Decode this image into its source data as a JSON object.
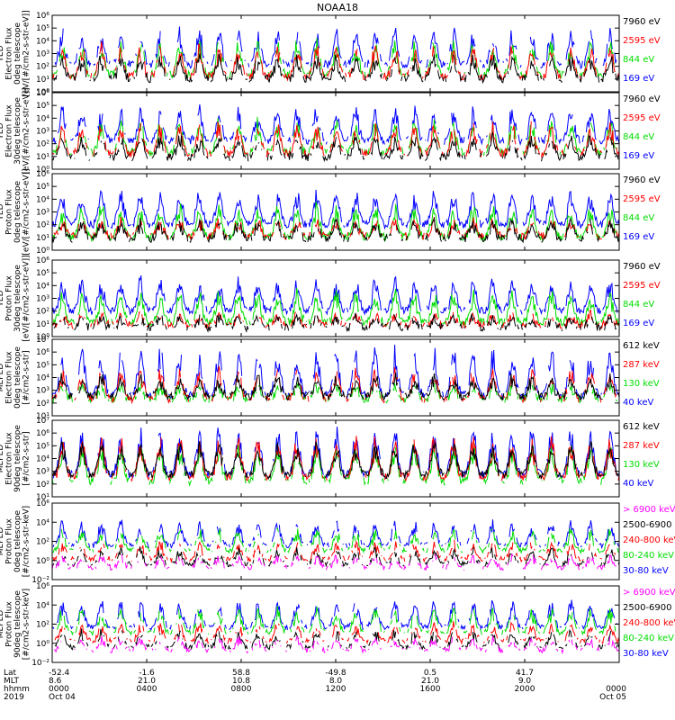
{
  "chart_data": {
    "type": "line",
    "title": "NOAA18",
    "x_range": [
      "2019-10-04 00:00",
      "2019-10-05 00:00"
    ],
    "x_ticks": [
      {
        "lat": "-52.4",
        "mlt": "8.6",
        "hhmm": "0000",
        "date": "Oct 04"
      },
      {
        "lat": "-1.6",
        "mlt": "21.0",
        "hhmm": "0400",
        "date": ""
      },
      {
        "lat": "58.8",
        "mlt": "10.8",
        "hhmm": "0800",
        "date": ""
      },
      {
        "lat": "-49.8",
        "mlt": "8.0",
        "hhmm": "1200",
        "date": ""
      },
      {
        "lat": "0.5",
        "mlt": "21.0",
        "hhmm": "1600",
        "date": ""
      },
      {
        "lat": "41.7",
        "mlt": "9.0",
        "hhmm": "2000",
        "date": ""
      },
      {
        "lat": "",
        "mlt": "",
        "hhmm": "0000",
        "date": "Oct 05"
      }
    ],
    "row_labels": [
      "Lat",
      "MLT",
      "hhmm",
      "2019"
    ],
    "panels": [
      {
        "ylabel": [
          "TED",
          "Electron Flux",
          "0deg telescope",
          "[eV/[#/cm2-s-str-eV]]"
        ],
        "y_ticks": [
          "10⁰",
          "10¹",
          "10²",
          "10³",
          "10⁴",
          "10⁵",
          "10⁶"
        ],
        "log_range": [
          0,
          6
        ],
        "series": [
          {
            "name": "7960 eV",
            "color": "#000000",
            "base": 1.0,
            "amp": 1.6,
            "act": 0.55
          },
          {
            "name": "2595 eV",
            "color": "#ff0000",
            "base": 1.2,
            "amp": 2.2,
            "act": 0.5
          },
          {
            "name": "844 eV",
            "color": "#00dd00",
            "base": 1.3,
            "amp": 2.4,
            "act": 0.45
          },
          {
            "name": "169 eV",
            "color": "#0000ff",
            "base": 2.1,
            "amp": 2.5,
            "act": 0.5
          }
        ]
      },
      {
        "ylabel": [
          "TED",
          "Electron Flux",
          "30deg telescope",
          "[eV/[#/cm2-s-str-eV]]"
        ],
        "y_ticks": [
          "10⁰",
          "10¹",
          "10²",
          "10³",
          "10⁴",
          "10⁵",
          "10⁶"
        ],
        "log_range": [
          0,
          6
        ],
        "series": [
          {
            "name": "7960 eV",
            "color": "#000000",
            "base": 0.9,
            "amp": 1.5,
            "act": 0.55
          },
          {
            "name": "2595 eV",
            "color": "#ff0000",
            "base": 1.2,
            "amp": 2.1,
            "act": 0.5
          },
          {
            "name": "844 eV",
            "color": "#00dd00",
            "base": 1.3,
            "amp": 2.3,
            "act": 0.45
          },
          {
            "name": "169 eV",
            "color": "#0000ff",
            "base": 2.2,
            "amp": 2.3,
            "act": 0.55
          }
        ]
      },
      {
        "ylabel": [
          "TED",
          "Proton Flux",
          "0deg telescope",
          "[eV/[#/cm2-s-str-eV]]"
        ],
        "y_ticks": [
          "10⁰",
          "10¹",
          "10²",
          "10³",
          "10⁴",
          "10⁵",
          "10⁶"
        ],
        "log_range": [
          0,
          6
        ],
        "series": [
          {
            "name": "7960 eV",
            "color": "#000000",
            "base": 0.9,
            "amp": 1.3,
            "act": 0.5
          },
          {
            "name": "2595 eV",
            "color": "#ff0000",
            "base": 1.1,
            "amp": 1.2,
            "act": 0.45
          },
          {
            "name": "844 eV",
            "color": "#00dd00",
            "base": 1.0,
            "amp": 2.3,
            "act": 0.85
          },
          {
            "name": "169 eV",
            "color": "#0000ff",
            "base": 2.0,
            "amp": 2.4,
            "act": 0.85
          }
        ]
      },
      {
        "ylabel": [
          "TED",
          "Proton Flux",
          "30deg telescope",
          "[eV/[#/cm2-s-str-eV]]"
        ],
        "y_ticks": [
          "10⁰",
          "10¹",
          "10²",
          "10³",
          "10⁴",
          "10⁵",
          "10⁶"
        ],
        "log_range": [
          0,
          6
        ],
        "series": [
          {
            "name": "7960 eV",
            "color": "#000000",
            "base": 0.7,
            "amp": 0.8,
            "act": 0.3
          },
          {
            "name": "2595 eV",
            "color": "#ff0000",
            "base": 0.9,
            "amp": 0.8,
            "act": 0.3
          },
          {
            "name": "844 eV",
            "color": "#00dd00",
            "base": 1.1,
            "amp": 2.2,
            "act": 0.8
          },
          {
            "name": "169 eV",
            "color": "#0000ff",
            "base": 2.0,
            "amp": 2.3,
            "act": 0.8
          }
        ]
      },
      {
        "ylabel": [
          "MEPED",
          "Electron Flux",
          "0deg telescope",
          "[#/cm2-s-str]"
        ],
        "y_ticks": [
          "10¹",
          "10²",
          "10³",
          "10⁴",
          "10⁵",
          "10⁶",
          "10⁷"
        ],
        "log_range": [
          1,
          7
        ],
        "series": [
          {
            "name": "612 keV",
            "color": "#000000",
            "base": 2.5,
            "amp": 1.5,
            "act": 0.7
          },
          {
            "name": "287 keV",
            "color": "#ff0000",
            "base": 2.3,
            "amp": 2.2,
            "act": 0.4
          },
          {
            "name": "130 keV",
            "color": "#00dd00",
            "base": 2.3,
            "amp": 1.0,
            "act": 0.3
          },
          {
            "name": "40 keV",
            "color": "#0000ff",
            "base": 2.6,
            "amp": 3.3,
            "act": 0.55
          }
        ]
      },
      {
        "ylabel": [
          "MEPED",
          "Electron Flux",
          "90deg telescope",
          "[#/cm2-s-str]"
        ],
        "y_ticks": [
          "10¹",
          "10²",
          "10³",
          "10⁴",
          "10⁵",
          "10⁶",
          "10⁷"
        ],
        "log_range": [
          1,
          7
        ],
        "series": [
          {
            "name": "612 keV",
            "color": "#000000",
            "base": 2.7,
            "amp": 2.3,
            "act": 0.8
          },
          {
            "name": "287 keV",
            "color": "#ff0000",
            "base": 2.5,
            "amp": 2.8,
            "act": 0.6
          },
          {
            "name": "130 keV",
            "color": "#00dd00",
            "base": 2.2,
            "amp": 2.6,
            "act": 0.5
          },
          {
            "name": "40 keV",
            "color": "#0000ff",
            "base": 2.7,
            "amp": 3.3,
            "act": 0.6
          }
        ]
      },
      {
        "ylabel": [
          "MEPED",
          "Proton Flux",
          "0deg telescope",
          "[#/cm2-s-str-keV]"
        ],
        "y_ticks": [
          "10⁻²",
          "10⁰",
          "10²",
          "10⁴",
          "10⁶"
        ],
        "log_range": [
          -3,
          6
        ],
        "series": [
          {
            "name": "> 6900 keV",
            "color": "#ff00ff",
            "base": -1.6,
            "amp": 1.3,
            "act": 0.25
          },
          {
            "name": "2500-6900",
            "color": "#000000",
            "base": -1.2,
            "amp": 1.6,
            "act": 0.3
          },
          {
            "name": "240-800 keV",
            "color": "#ff0000",
            "base": -0.6,
            "amp": 1.8,
            "act": 0.3
          },
          {
            "name": "80-240 keV",
            "color": "#00dd00",
            "base": 0.4,
            "amp": 2.3,
            "act": 0.4
          },
          {
            "name": "30-80 keV",
            "color": "#0000ff",
            "base": 1.0,
            "amp": 2.6,
            "act": 0.5
          }
        ]
      },
      {
        "ylabel": [
          "MEPED",
          "Proton Flux",
          "90deg telescope",
          "[#/cm2-s-str-keV]"
        ],
        "y_ticks": [
          "10⁻²",
          "10⁰",
          "10²",
          "10⁴",
          "10⁶"
        ],
        "log_range": [
          -3,
          6
        ],
        "series": [
          {
            "name": "> 6900 keV",
            "color": "#ff00ff",
            "base": -1.6,
            "amp": 1.3,
            "act": 0.25
          },
          {
            "name": "2500-6900",
            "color": "#000000",
            "base": -1.2,
            "amp": 1.7,
            "act": 0.3
          },
          {
            "name": "240-800 keV",
            "color": "#ff0000",
            "base": -0.5,
            "amp": 1.9,
            "act": 0.35
          },
          {
            "name": "80-240 keV",
            "color": "#00dd00",
            "base": 0.5,
            "amp": 2.6,
            "act": 0.45
          },
          {
            "name": "30-80 keV",
            "color": "#0000ff",
            "base": 1.1,
            "amp": 2.8,
            "act": 0.55
          }
        ]
      }
    ]
  }
}
